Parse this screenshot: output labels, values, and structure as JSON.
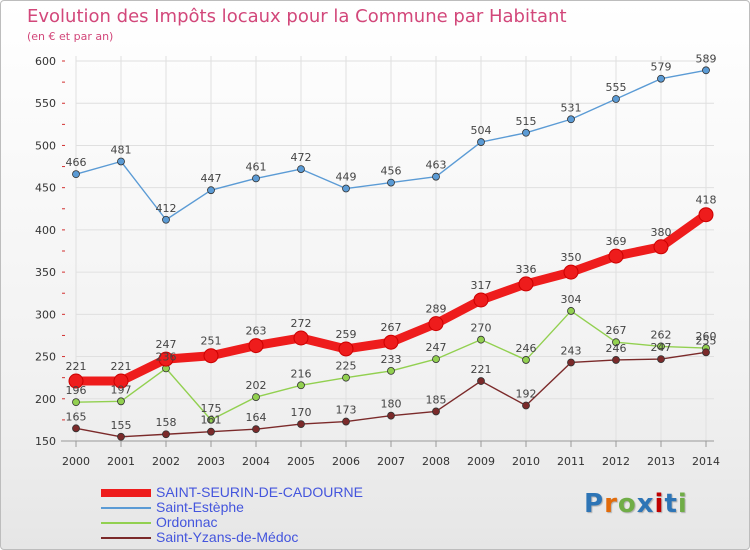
{
  "colors": {
    "title": "#d2477a",
    "grid": "#e0e0e0",
    "axis": "#999999",
    "tick_mark": "#d23030"
  },
  "chart_data": {
    "type": "line",
    "title": "Evolution des Impôts locaux pour la Commune par Habitant",
    "subtitle": "(en € et par an)",
    "x": [
      "2000",
      "2001",
      "2002",
      "2003",
      "2004",
      "2005",
      "2006",
      "2007",
      "2008",
      "2009",
      "2010",
      "2011",
      "2012",
      "2013",
      "2014"
    ],
    "yticks": [
      150,
      200,
      250,
      300,
      350,
      400,
      450,
      500,
      550,
      600
    ],
    "ylim": [
      150,
      600
    ],
    "grid": true,
    "series": [
      {
        "name": "SAINT-SEURIN-DE-CADOURNE",
        "color": "#ee1c1c",
        "highlight": true,
        "values": [
          221,
          221,
          247,
          251,
          263,
          272,
          259,
          267,
          289,
          317,
          336,
          350,
          369,
          380,
          418
        ]
      },
      {
        "name": "Saint-Estèphe",
        "color": "#5b9bd5",
        "highlight": false,
        "values": [
          466,
          481,
          412,
          447,
          461,
          472,
          449,
          456,
          463,
          504,
          515,
          531,
          555,
          579,
          589
        ]
      },
      {
        "name": "Ordonnac",
        "color": "#92d050",
        "highlight": false,
        "values": [
          196,
          197,
          236,
          175,
          202,
          216,
          225,
          233,
          247,
          270,
          246,
          304,
          267,
          262,
          260
        ]
      },
      {
        "name": "Saint-Yzans-de-Médoc",
        "color": "#7b2a2a",
        "highlight": false,
        "values": [
          165,
          155,
          158,
          161,
          164,
          170,
          173,
          180,
          185,
          221,
          192,
          243,
          246,
          247,
          255
        ]
      }
    ]
  },
  "logo": {
    "text": "Proxiti",
    "colors": [
      "#2e75b6",
      "#e26b0a",
      "#70ad47",
      "#2e75b6",
      "#c00000",
      "#2e75b6",
      "#70ad47"
    ]
  }
}
